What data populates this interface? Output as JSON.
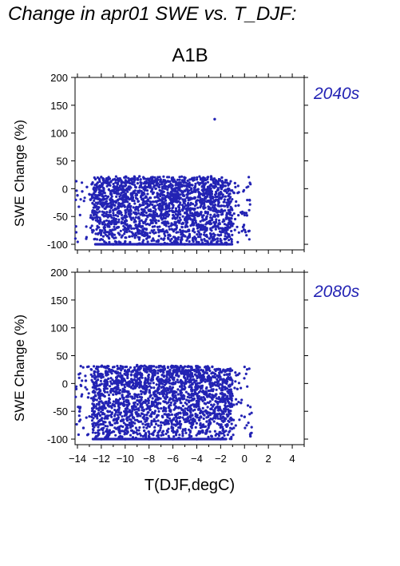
{
  "figure": {
    "title": "Change in apr01 SWE vs. T_DJF:",
    "scenario": "A1B"
  },
  "chart_data": [
    {
      "type": "scatter",
      "panel": "2040s",
      "title": "2040s",
      "ylabel": "SWE Change (%)",
      "xlabel": "",
      "xlim": [
        -14.2,
        5
      ],
      "ylim": [
        -110,
        200
      ],
      "yticks": [
        200,
        150,
        100,
        50,
        0,
        -50,
        -100
      ],
      "xticks": [
        -14,
        -12,
        -10,
        -8,
        -6,
        -4,
        -2,
        0,
        2,
        4
      ],
      "grid": false,
      "point_color": "#2323b4",
      "cloud": {
        "x_range": [
          -14.2,
          0.5
        ],
        "y_range": [
          -100,
          22
        ],
        "floor_line_y": -100,
        "floor_line_x": [
          -12.5,
          -1.0
        ]
      },
      "points": [
        [
          -14.0,
          -12
        ],
        [
          -13.6,
          -5
        ],
        [
          -13.2,
          3
        ],
        [
          -12.9,
          -20
        ],
        [
          -12.6,
          -45
        ],
        [
          -12.3,
          -70
        ],
        [
          -12.1,
          5
        ],
        [
          -11.8,
          -30
        ],
        [
          -11.5,
          -85
        ],
        [
          -11.2,
          12
        ],
        [
          -10.9,
          -55
        ],
        [
          -10.6,
          -20
        ],
        [
          -10.3,
          10
        ],
        [
          -10.0,
          -95
        ],
        [
          -9.7,
          -40
        ],
        [
          -9.4,
          18
        ],
        [
          -9.1,
          -65
        ],
        [
          -8.8,
          22
        ],
        [
          -8.5,
          -25
        ],
        [
          -8.2,
          -90
        ],
        [
          -7.9,
          5
        ],
        [
          -7.6,
          -50
        ],
        [
          -7.3,
          -15
        ],
        [
          -7.0,
          -75
        ],
        [
          -6.7,
          8
        ],
        [
          -6.4,
          -35
        ],
        [
          -6.1,
          -98
        ],
        [
          -5.8,
          12
        ],
        [
          -5.5,
          -60
        ],
        [
          -5.2,
          15
        ],
        [
          -4.9,
          -30
        ],
        [
          -4.6,
          -85
        ],
        [
          -4.3,
          18
        ],
        [
          -4.0,
          -45
        ],
        [
          -3.7,
          10
        ],
        [
          -3.4,
          -70
        ],
        [
          -3.1,
          20
        ],
        [
          -2.8,
          22
        ],
        [
          -2.5,
          125
        ],
        [
          -2.4,
          15
        ],
        [
          -2.2,
          -40
        ],
        [
          -1.9,
          20
        ],
        [
          -1.6,
          5
        ],
        [
          -1.4,
          -20
        ],
        [
          -1.2,
          -60
        ],
        [
          -0.8,
          10
        ],
        [
          -0.5,
          -30
        ],
        [
          -0.2,
          -45
        ],
        [
          0.2,
          -48
        ],
        [
          -12.8,
          8
        ],
        [
          -11.0,
          -100
        ],
        [
          -9.0,
          -100
        ],
        [
          -7.0,
          -100
        ],
        [
          -5.0,
          -100
        ],
        [
          -3.0,
          -100
        ],
        [
          -1.5,
          -100
        ],
        [
          -13.0,
          -10
        ],
        [
          -8.0,
          -40
        ],
        [
          -6.0,
          -20
        ],
        [
          -4.5,
          -55
        ]
      ]
    },
    {
      "type": "scatter",
      "panel": "2080s",
      "title": "2080s",
      "ylabel": "SWE Change (%)",
      "xlabel": "T(DJF,degC)",
      "xlim": [
        -14.2,
        5
      ],
      "ylim": [
        -110,
        200
      ],
      "yticks": [
        200,
        150,
        100,
        50,
        0,
        -50,
        -100
      ],
      "xticks": [
        -14,
        -12,
        -10,
        -8,
        -6,
        -4,
        -2,
        0,
        2,
        4
      ],
      "xtick_labels": [
        "−14",
        "−12",
        "−10",
        "−8",
        "−6",
        "−4",
        "−2",
        "0",
        "2",
        "4"
      ],
      "grid": false,
      "point_color": "#2323b4",
      "cloud": {
        "x_range": [
          -14.2,
          0.6
        ],
        "y_range": [
          -100,
          32
        ],
        "floor_line_y": -100,
        "floor_line_x": [
          -12.7,
          -1.5
        ]
      },
      "points": [
        [
          -14.1,
          -10
        ],
        [
          -13.8,
          -45
        ],
        [
          -13.5,
          -80
        ],
        [
          -13.1,
          -25
        ],
        [
          -12.8,
          -60
        ],
        [
          -12.5,
          -5
        ],
        [
          -12.2,
          -90
        ],
        [
          -11.9,
          -35
        ],
        [
          -11.6,
          15
        ],
        [
          -11.3,
          -70
        ],
        [
          -11.0,
          -20
        ],
        [
          -10.7,
          20
        ],
        [
          -10.4,
          -95
        ],
        [
          -10.1,
          -40
        ],
        [
          -9.8,
          10
        ],
        [
          -9.5,
          -75
        ],
        [
          -9.2,
          25
        ],
        [
          -9.0,
          33
        ],
        [
          -8.7,
          -30
        ],
        [
          -8.4,
          -85
        ],
        [
          -8.1,
          5
        ],
        [
          -7.8,
          -55
        ],
        [
          -7.5,
          -15
        ],
        [
          -7.2,
          -98
        ],
        [
          -6.9,
          15
        ],
        [
          -6.6,
          -45
        ],
        [
          -6.3,
          20
        ],
        [
          -6.0,
          -80
        ],
        [
          -5.7,
          25
        ],
        [
          -5.4,
          -30
        ],
        [
          -5.1,
          22
        ],
        [
          -4.8,
          -65
        ],
        [
          -4.5,
          18
        ],
        [
          -4.2,
          -40
        ],
        [
          -3.9,
          -90
        ],
        [
          -3.6,
          10
        ],
        [
          -3.3,
          -50
        ],
        [
          -3.0,
          25
        ],
        [
          -2.7,
          30
        ],
        [
          -2.4,
          -20
        ],
        [
          -2.1,
          15
        ],
        [
          -1.8,
          -60
        ],
        [
          -1.5,
          5
        ],
        [
          -1.2,
          -40
        ],
        [
          -0.9,
          -80
        ],
        [
          -0.6,
          -10
        ],
        [
          -0.3,
          -35
        ],
        [
          0.0,
          -60
        ],
        [
          0.5,
          -95
        ],
        [
          -12.0,
          -100
        ],
        [
          -10.0,
          -100
        ],
        [
          -8.0,
          -100
        ],
        [
          -6.0,
          -100
        ],
        [
          -4.0,
          -100
        ],
        [
          -2.0,
          -100
        ],
        [
          -13.3,
          5
        ],
        [
          -9.7,
          22
        ],
        [
          -7.0,
          -70
        ],
        [
          -5.0,
          -50
        ],
        [
          -3.5,
          -75
        ]
      ]
    }
  ]
}
